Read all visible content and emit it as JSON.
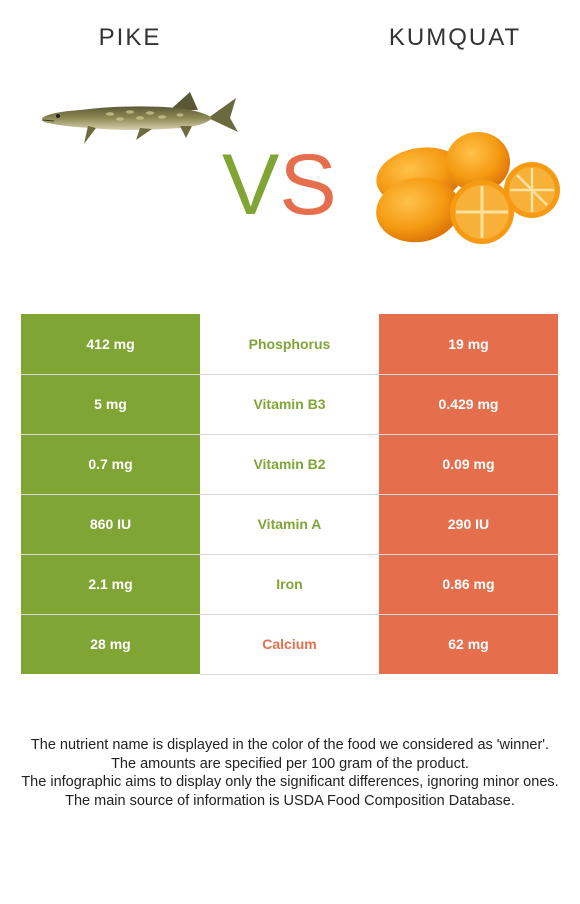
{
  "header": {
    "left_food": "PIKE",
    "right_food": "KUMQUAT",
    "vs_v": "V",
    "vs_s": "S"
  },
  "colors": {
    "left_winner": "#80a535",
    "right_winner": "#e56f4c"
  },
  "images": {
    "left": "pike-fish-icon",
    "right": "kumquat-fruit-icon"
  },
  "rows": [
    {
      "left": "412 mg",
      "nutrient": "Phosphorus",
      "right": "19 mg",
      "winner": "left"
    },
    {
      "left": "5 mg",
      "nutrient": "Vitamin B3",
      "right": "0.429 mg",
      "winner": "left"
    },
    {
      "left": "0.7 mg",
      "nutrient": "Vitamin B2",
      "right": "0.09 mg",
      "winner": "left"
    },
    {
      "left": "860 IU",
      "nutrient": "Vitamin A",
      "right": "290 IU",
      "winner": "left"
    },
    {
      "left": "2.1 mg",
      "nutrient": "Iron",
      "right": "0.86 mg",
      "winner": "left"
    },
    {
      "left": "28 mg",
      "nutrient": "Calcium",
      "right": "62 mg",
      "winner": "right"
    }
  ],
  "footer": {
    "line1": "The nutrient name is displayed in the color of the food we considered as 'winner'.",
    "line2": "The amounts are specified per 100 gram of the product.",
    "line3": "The infographic aims to display only the significant differences, ignoring minor ones.",
    "line4": "The main source of information is USDA Food Composition Database."
  }
}
